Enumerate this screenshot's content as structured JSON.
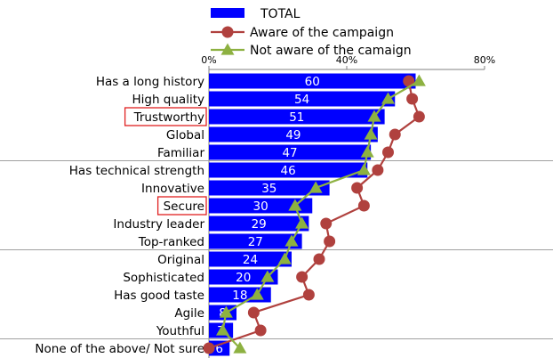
{
  "chart_data": {
    "type": "bar",
    "orientation": "horizontal",
    "xlim": [
      0,
      80
    ],
    "xticks": [
      "0%",
      "40%",
      "80%"
    ],
    "categories": [
      "Has a long history",
      "High quality",
      "Trustworthy",
      "Global",
      "Familiar",
      "Has technical strength",
      "Innovative",
      "Secure",
      "Industry leader",
      "Top-ranked",
      "Original",
      "Sophisticated",
      "Has good taste",
      "Agile",
      "Youthful",
      "None of the above/ Not sure"
    ],
    "highlighted": [
      "Trustworthy",
      "Secure"
    ],
    "group_separators_after": [
      "Familiar",
      "Top-ranked",
      "Youthful"
    ],
    "series": [
      {
        "name": "TOTAL",
        "kind": "bar",
        "color": "#0000ff",
        "values": [
          60,
          54,
          51,
          49,
          47,
          46,
          35,
          30,
          29,
          27,
          24,
          20,
          18,
          8,
          7,
          6
        ]
      },
      {
        "name": "Aware of the campaign",
        "kind": "line",
        "marker": "circle",
        "color": "#b0413e",
        "values": [
          58,
          59,
          61,
          54,
          52,
          49,
          43,
          45,
          34,
          35,
          32,
          27,
          29,
          13,
          15,
          0
        ]
      },
      {
        "name": "Not aware of the camaign",
        "kind": "line",
        "marker": "triangle",
        "color": "#8db141",
        "values": [
          61,
          52,
          48,
          47,
          46,
          45,
          31,
          25,
          27,
          24,
          22,
          17,
          14,
          5,
          4,
          9
        ]
      }
    ],
    "data_labels": [
      "60",
      "54",
      "51",
      "49",
      "47",
      "46",
      "35",
      "30",
      "29",
      "27",
      "24",
      "20",
      "18",
      "8",
      "7",
      "6"
    ]
  }
}
